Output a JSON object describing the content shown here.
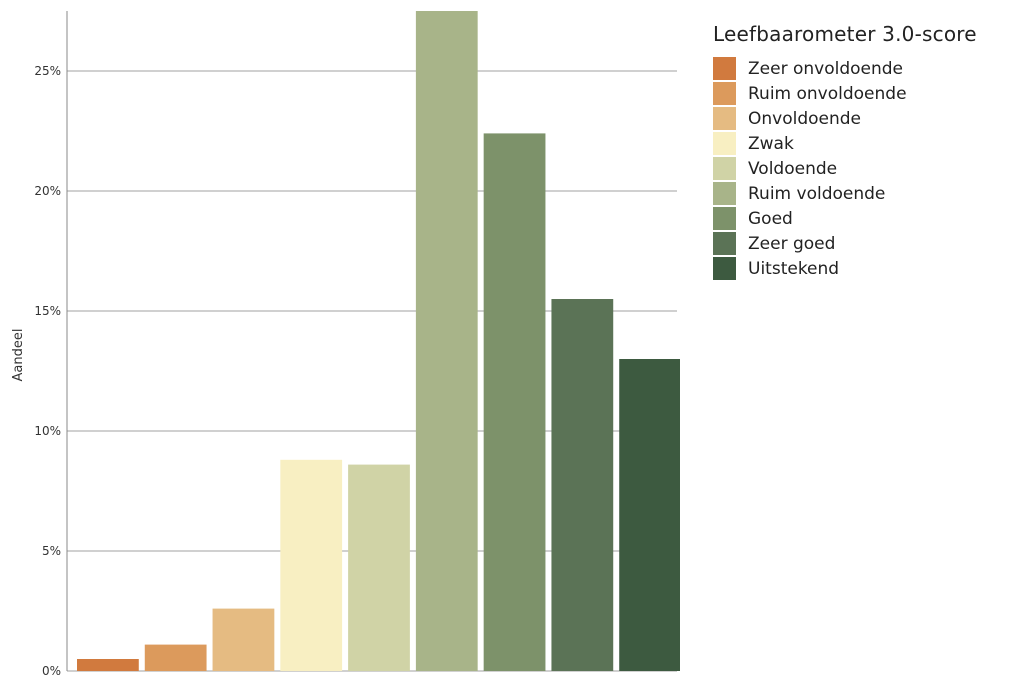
{
  "chart_data": {
    "type": "bar",
    "title": "",
    "xlabel": "",
    "ylabel": "Aandeel",
    "ylim": [
      0,
      27.5
    ],
    "yticks": [
      0,
      5,
      10,
      15,
      20,
      25
    ],
    "ytick_labels": [
      "0%",
      "5%",
      "10%",
      "15%",
      "20%",
      "25%"
    ],
    "grid": true,
    "legend_title": "Leefbaarometer 3.0-score",
    "legend_position": "right",
    "categories": [
      "Zeer onvoldoende",
      "Ruim onvoldoende",
      "Onvoldoende",
      "Zwak",
      "Voldoende",
      "Ruim voldoende",
      "Goed",
      "Zeer goed",
      "Uitstekend"
    ],
    "values": [
      0.5,
      1.1,
      2.6,
      8.8,
      8.6,
      27.5,
      22.4,
      15.5,
      13.0
    ],
    "colors": [
      "#d17a3e",
      "#dc9a5c",
      "#e5bb82",
      "#f8efc2",
      "#d0d3a6",
      "#a8b489",
      "#7d926a",
      "#5b7356",
      "#3d5a40"
    ]
  }
}
